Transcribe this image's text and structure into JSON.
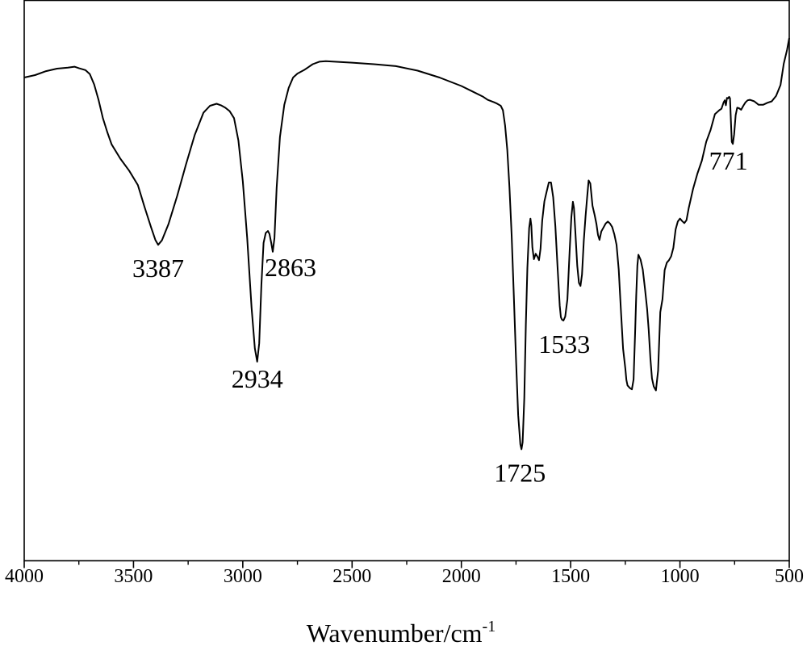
{
  "chart_data": {
    "type": "line",
    "title": "",
    "xlabel": "Wavenumber/cm",
    "xlabel_superscript": "-1",
    "ylabel": "",
    "xlim": [
      4000,
      500
    ],
    "x_reversed": true,
    "ylim": [
      0,
      100
    ],
    "y_ticks_shown": false,
    "grid": false,
    "legend": "none",
    "x_ticks": [
      4000,
      3500,
      3000,
      2500,
      2000,
      1500,
      1000,
      500
    ],
    "line_color": "#000000",
    "series": [
      {
        "x": [
          4000,
          3950,
          3900,
          3850,
          3800,
          3770,
          3750,
          3720,
          3700,
          3680,
          3660,
          3640,
          3620,
          3600,
          3560,
          3520,
          3480,
          3450,
          3420,
          3400,
          3387,
          3370,
          3340,
          3300,
          3260,
          3220,
          3180,
          3150,
          3120,
          3100,
          3080,
          3060,
          3040,
          3020,
          3000,
          2980,
          2960,
          2945,
          2934,
          2925,
          2915,
          2905,
          2895,
          2885,
          2878,
          2870,
          2863,
          2855,
          2845,
          2830,
          2810,
          2790,
          2770,
          2750,
          2720,
          2700,
          2680,
          2650,
          2620,
          2580,
          2500,
          2400,
          2300,
          2200,
          2100,
          2000,
          1950,
          1900,
          1880,
          1850,
          1840,
          1820,
          1810,
          1800,
          1790,
          1780,
          1770,
          1760,
          1750,
          1740,
          1730,
          1725,
          1720,
          1712,
          1705,
          1698,
          1690,
          1684,
          1680,
          1675,
          1668,
          1660,
          1652,
          1645,
          1638,
          1630,
          1620,
          1610,
          1600,
          1590,
          1580,
          1570,
          1560,
          1550,
          1545,
          1540,
          1533,
          1525,
          1515,
          1505,
          1497,
          1490,
          1485,
          1478,
          1470,
          1462,
          1455,
          1448,
          1440,
          1432,
          1425,
          1418,
          1410,
          1400,
          1390,
          1382,
          1375,
          1368,
          1360,
          1350,
          1340,
          1330,
          1320,
          1310,
          1300,
          1290,
          1280,
          1270,
          1260,
          1250,
          1245,
          1240,
          1230,
          1220,
          1212,
          1205,
          1200,
          1195,
          1190,
          1180,
          1170,
          1160,
          1150,
          1143,
          1135,
          1128,
          1120,
          1110,
          1100,
          1090,
          1080,
          1070,
          1060,
          1050,
          1040,
          1030,
          1020,
          1010,
          1000,
          990,
          980,
          970,
          960,
          940,
          920,
          900,
          880,
          860,
          840,
          820,
          810,
          800,
          795,
          790,
          785,
          780,
          775,
          771,
          767,
          763,
          758,
          752,
          745,
          738,
          730,
          720,
          710,
          700,
          690,
          680,
          660,
          640,
          620,
          600,
          580,
          560,
          540,
          525,
          510,
          500
        ],
        "y": [
          92.0,
          92.5,
          93.3,
          93.8,
          94.0,
          94.2,
          93.9,
          93.5,
          92.7,
          90.6,
          87.5,
          83.8,
          81.0,
          78.5,
          75.6,
          73.2,
          70.3,
          65.9,
          61.8,
          59.2,
          58.2,
          59.1,
          62.4,
          68.1,
          74.4,
          80.4,
          84.9,
          86.3,
          86.7,
          86.4,
          85.9,
          85.2,
          83.8,
          79.3,
          71.0,
          59.6,
          45.6,
          37.3,
          34.6,
          38.3,
          50.1,
          58.6,
          60.6,
          61.0,
          60.4,
          58.6,
          56.8,
          59.6,
          69.7,
          80.0,
          86.5,
          89.9,
          92.0,
          92.8,
          93.5,
          94.1,
          94.7,
          95.2,
          95.3,
          95.2,
          95.0,
          94.7,
          94.3,
          93.4,
          92.0,
          90.3,
          89.2,
          88.1,
          87.5,
          87.0,
          86.8,
          86.3,
          85.4,
          82.3,
          77.4,
          69.8,
          60.2,
          48.0,
          35.2,
          23.8,
          17.9,
          16.9,
          18.3,
          27.3,
          42.0,
          53.5,
          61.6,
          63.5,
          62.1,
          57.7,
          55.3,
          56.4,
          55.8,
          55.1,
          57.4,
          63.1,
          67.0,
          68.9,
          70.8,
          70.8,
          67.8,
          61.9,
          53.7,
          45.9,
          43.6,
          43.1,
          42.9,
          43.7,
          47.2,
          56.7,
          63.8,
          66.9,
          65.7,
          60.4,
          54.0,
          50.5,
          49.9,
          52.2,
          59.0,
          64.0,
          67.7,
          71.2,
          70.6,
          66.1,
          64.2,
          62.4,
          60.2,
          59.2,
          60.9,
          61.7,
          62.5,
          62.9,
          62.5,
          61.8,
          60.3,
          58.2,
          53.2,
          45.0,
          37.2,
          33.2,
          30.9,
          29.8,
          29.3,
          29.0,
          31.0,
          40.4,
          48.0,
          54.0,
          56.2,
          55.2,
          53.2,
          49.4,
          45.2,
          41.1,
          35.1,
          31.2,
          29.6,
          28.8,
          32.8,
          44.6,
          47.2,
          53.1,
          54.6,
          55.1,
          55.9,
          57.6,
          61.3,
          62.9,
          63.5,
          63.0,
          62.6,
          63.2,
          65.6,
          69.5,
          72.6,
          75.2,
          79.0,
          81.4,
          84.6,
          85.4,
          85.7,
          87.0,
          87.4,
          86.4,
          87.9,
          87.8,
          88.1,
          87.8,
          83.3,
          79.0,
          78.6,
          80.5,
          84.4,
          85.9,
          85.8,
          85.5,
          86.3,
          87.0,
          87.4,
          87.5,
          87.2,
          86.5,
          86.5,
          86.9,
          87.2,
          88.3,
          90.5,
          94.8,
          97.6,
          100.0
        ]
      }
    ],
    "annotations": [
      {
        "text": "3387",
        "x": 3387,
        "y": 58.2
      },
      {
        "text": "2934",
        "x": 2934,
        "y": 34.6
      },
      {
        "text": "2863",
        "x": 2863,
        "y": 56.8
      },
      {
        "text": "1725",
        "x": 1725,
        "y": 16.9
      },
      {
        "text": "1533",
        "x": 1533,
        "y": 42.9
      },
      {
        "text": "771",
        "x": 771,
        "y": 78.6
      }
    ]
  }
}
